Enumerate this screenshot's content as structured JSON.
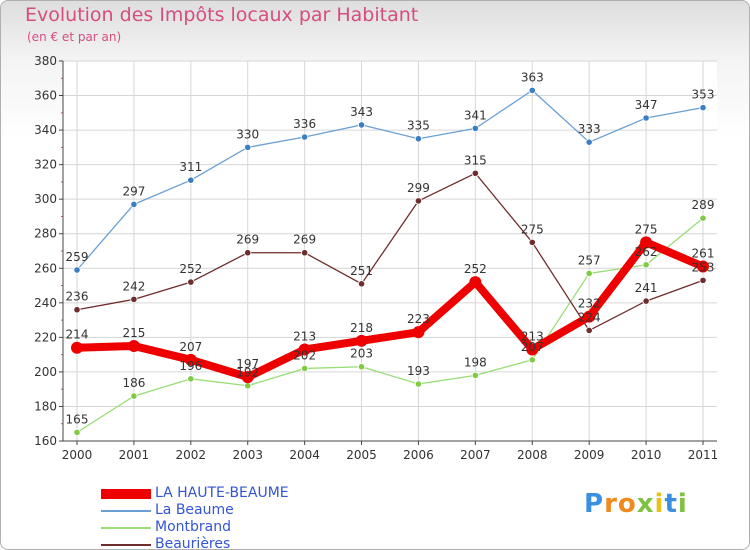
{
  "header": {
    "title": "Evolution des Impôts locaux par Habitant",
    "subtitle": "(en € et par an)"
  },
  "logo": {
    "letters": [
      "P",
      "r",
      "o",
      "x",
      "i",
      "t",
      "i"
    ],
    "colors": [
      "#3a8fe0",
      "#f08a1c",
      "#f08a1c",
      "#7fc241",
      "#e8c21a",
      "#3a8fe0",
      "#7fc241"
    ]
  },
  "chart_data": {
    "type": "line",
    "title": "Evolution des Impôts locaux par Habitant",
    "subtitle": "(en € et par an)",
    "x": [
      "2000",
      "2001",
      "2002",
      "2003",
      "2004",
      "2005",
      "2006",
      "2007",
      "2008",
      "2009",
      "2010",
      "2011"
    ],
    "ylim": [
      160,
      380
    ],
    "yticks": [
      160,
      180,
      200,
      220,
      240,
      260,
      280,
      300,
      320,
      340,
      360,
      380
    ],
    "grid": true,
    "legend_position": "bottom-left",
    "series": [
      {
        "name": "LA HAUTE-BEAUME",
        "color": "#ee0000",
        "style": "thick",
        "values": [
          214,
          215,
          207,
          197,
          213,
          218,
          223,
          252,
          213,
          232,
          275,
          261
        ]
      },
      {
        "name": "La Beaume",
        "color": "#6a9fd4",
        "style": "thin",
        "values": [
          259,
          297,
          311,
          330,
          336,
          343,
          335,
          341,
          363,
          333,
          347,
          353
        ]
      },
      {
        "name": "Montbrand",
        "color": "#99dd77",
        "style": "thin",
        "values": [
          165,
          186,
          196,
          192,
          202,
          203,
          193,
          198,
          207,
          257,
          262,
          289
        ]
      },
      {
        "name": "Beaurières",
        "color": "#6e2c2c",
        "style": "thin",
        "values": [
          236,
          242,
          252,
          269,
          269,
          251,
          299,
          315,
          275,
          224,
          241,
          253
        ]
      }
    ],
    "data_labels": [
      [
        214,
        215,
        207,
        197,
        213,
        218,
        223,
        252,
        213,
        232,
        275,
        261
      ],
      [
        259,
        297,
        311,
        330,
        336,
        343,
        335,
        341,
        363,
        333,
        347,
        353
      ],
      [
        165,
        186,
        196,
        192,
        202,
        203,
        193,
        198,
        207,
        257,
        262,
        289
      ],
      [
        236,
        242,
        252,
        269,
        269,
        251,
        299,
        315,
        275,
        224,
        241,
        253
      ]
    ]
  }
}
